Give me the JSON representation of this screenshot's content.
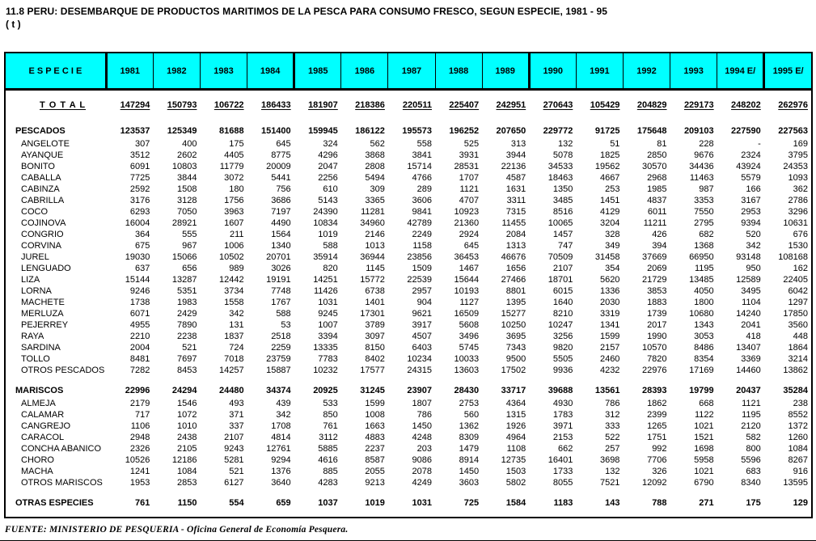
{
  "page": {
    "title": "11.8  PERU: DESEMBARQUE DE PRODUCTOS MARITIMOS DE LA PESCA PARA CONSUMO FRESCO, SEGUN ESPECIE, 1981 - 95",
    "unit": "( t )",
    "footer": "FUENTE: MINISTERIO DE PESQUERIA - Oficina General de Economía Pesquera."
  },
  "colors": {
    "header_bg": "#00ffff",
    "border": "#000000",
    "text": "#000000"
  },
  "table": {
    "columns": [
      "E S P E C I E",
      "1981",
      "1982",
      "1983",
      "1984",
      "1985",
      "1986",
      "1987",
      "1988",
      "1989",
      "1990",
      "1991",
      "1992",
      "1993",
      "1994 E/",
      "1995 E/"
    ],
    "rows": [
      {
        "label": "T O T A L",
        "style": "total",
        "values": [
          "147294",
          "150793",
          "106722",
          "186433",
          "181907",
          "218386",
          "220511",
          "225407",
          "242951",
          "270643",
          "105429",
          "204829",
          "229173",
          "248202",
          "262976"
        ]
      },
      {
        "label": "PESCADOS",
        "style": "section",
        "values": [
          "123537",
          "125349",
          "81688",
          "151400",
          "159945",
          "186122",
          "195573",
          "196252",
          "207650",
          "229772",
          "91725",
          "175648",
          "209103",
          "227590",
          "227563"
        ]
      },
      {
        "label": "ANGELOTE",
        "style": "item",
        "values": [
          "307",
          "400",
          "175",
          "645",
          "324",
          "562",
          "558",
          "525",
          "313",
          "132",
          "51",
          "81",
          "228",
          "-",
          "169"
        ]
      },
      {
        "label": "AYANQUE",
        "style": "item",
        "values": [
          "3512",
          "2602",
          "4405",
          "8775",
          "4296",
          "3868",
          "3841",
          "3931",
          "3944",
          "5078",
          "1825",
          "2850",
          "9676",
          "2324",
          "3795"
        ]
      },
      {
        "label": "BONITO",
        "style": "item",
        "values": [
          "6091",
          "10803",
          "11779",
          "20009",
          "2047",
          "2808",
          "15714",
          "28531",
          "22136",
          "34533",
          "19562",
          "30570",
          "34436",
          "43924",
          "24353"
        ]
      },
      {
        "label": "CABALLA",
        "style": "item",
        "values": [
          "7725",
          "3844",
          "3072",
          "5441",
          "2256",
          "5494",
          "4766",
          "1707",
          "4587",
          "18463",
          "4667",
          "2968",
          "11463",
          "5579",
          "1093"
        ]
      },
      {
        "label": "CABINZA",
        "style": "item",
        "values": [
          "2592",
          "1508",
          "180",
          "756",
          "610",
          "309",
          "289",
          "1121",
          "1631",
          "1350",
          "253",
          "1985",
          "987",
          "166",
          "362"
        ]
      },
      {
        "label": "CABRILLA",
        "style": "item",
        "values": [
          "3176",
          "3128",
          "1756",
          "3686",
          "5143",
          "3365",
          "3606",
          "4707",
          "3311",
          "3485",
          "1451",
          "4837",
          "3353",
          "3167",
          "2786"
        ]
      },
      {
        "label": "COCO",
        "style": "item",
        "values": [
          "6293",
          "7050",
          "3963",
          "7197",
          "24390",
          "11281",
          "9841",
          "10923",
          "7315",
          "8516",
          "4129",
          "6011",
          "7550",
          "2953",
          "3296"
        ]
      },
      {
        "label": "COJINOVA",
        "style": "item",
        "values": [
          "16004",
          "28921",
          "1607",
          "4490",
          "10834",
          "34960",
          "42789",
          "21360",
          "11455",
          "10065",
          "3204",
          "11211",
          "2795",
          "9394",
          "10631"
        ]
      },
      {
        "label": "CONGRIO",
        "style": "item",
        "values": [
          "364",
          "555",
          "211",
          "1564",
          "1019",
          "2146",
          "2249",
          "2924",
          "2084",
          "1457",
          "328",
          "426",
          "682",
          "520",
          "676"
        ]
      },
      {
        "label": "CORVINA",
        "style": "item",
        "values": [
          "675",
          "967",
          "1006",
          "1340",
          "588",
          "1013",
          "1158",
          "645",
          "1313",
          "747",
          "349",
          "394",
          "1368",
          "342",
          "1530"
        ]
      },
      {
        "label": "JUREL",
        "style": "item",
        "values": [
          "19030",
          "15066",
          "10502",
          "20701",
          "35914",
          "36944",
          "23856",
          "36453",
          "46676",
          "70509",
          "31458",
          "37669",
          "66950",
          "93148",
          "108168"
        ]
      },
      {
        "label": "LENGUADO",
        "style": "item",
        "values": [
          "637",
          "656",
          "989",
          "3026",
          "820",
          "1145",
          "1509",
          "1467",
          "1656",
          "2107",
          "354",
          "2069",
          "1195",
          "950",
          "162"
        ]
      },
      {
        "label": "LIZA",
        "style": "item",
        "values": [
          "15144",
          "13287",
          "12442",
          "19191",
          "14251",
          "15772",
          "22539",
          "15644",
          "27466",
          "18701",
          "5620",
          "21729",
          "13485",
          "12589",
          "22405"
        ]
      },
      {
        "label": "LORNA",
        "style": "item",
        "values": [
          "9246",
          "5351",
          "3734",
          "7748",
          "11426",
          "6738",
          "2957",
          "10193",
          "8801",
          "6015",
          "1336",
          "3853",
          "4050",
          "3495",
          "6042"
        ]
      },
      {
        "label": "MACHETE",
        "style": "item",
        "values": [
          "1738",
          "1983",
          "1558",
          "1767",
          "1031",
          "1401",
          "904",
          "1127",
          "1395",
          "1640",
          "2030",
          "1883",
          "1800",
          "1104",
          "1297"
        ]
      },
      {
        "label": "MERLUZA",
        "style": "item",
        "values": [
          "6071",
          "2429",
          "342",
          "588",
          "9245",
          "17301",
          "9621",
          "16509",
          "15277",
          "8210",
          "3319",
          "1739",
          "10680",
          "14240",
          "17850"
        ]
      },
      {
        "label": "PEJERREY",
        "style": "item",
        "values": [
          "4955",
          "7890",
          "131",
          "53",
          "1007",
          "3789",
          "3917",
          "5608",
          "10250",
          "10247",
          "1341",
          "2017",
          "1343",
          "2041",
          "3560"
        ]
      },
      {
        "label": "RAYA",
        "style": "item",
        "values": [
          "2210",
          "2238",
          "1837",
          "2518",
          "3394",
          "3097",
          "4507",
          "3496",
          "3695",
          "3256",
          "1599",
          "1990",
          "3053",
          "418",
          "448"
        ]
      },
      {
        "label": "SARDINA",
        "style": "item",
        "values": [
          "2004",
          "521",
          "724",
          "2259",
          "13335",
          "8150",
          "6403",
          "5745",
          "7343",
          "9820",
          "2157",
          "10570",
          "8486",
          "13407",
          "1864"
        ]
      },
      {
        "label": "TOLLO",
        "style": "item",
        "values": [
          "8481",
          "7697",
          "7018",
          "23759",
          "7783",
          "8402",
          "10234",
          "10033",
          "9500",
          "5505",
          "2460",
          "7820",
          "8354",
          "3369",
          "3214"
        ]
      },
      {
        "label": "OTROS PESCADOS",
        "style": "item",
        "values": [
          "7282",
          "8453",
          "14257",
          "15887",
          "10232",
          "17577",
          "24315",
          "13603",
          "17502",
          "9936",
          "4232",
          "22976",
          "17169",
          "14460",
          "13862"
        ]
      },
      {
        "label": "MARISCOS",
        "style": "section",
        "values": [
          "22996",
          "24294",
          "24480",
          "34374",
          "20925",
          "31245",
          "23907",
          "28430",
          "33717",
          "39688",
          "13561",
          "28393",
          "19799",
          "20437",
          "35284"
        ]
      },
      {
        "label": "ALMEJA",
        "style": "item",
        "values": [
          "2179",
          "1546",
          "493",
          "439",
          "533",
          "1599",
          "1807",
          "2753",
          "4364",
          "4930",
          "786",
          "1862",
          "668",
          "1121",
          "238"
        ]
      },
      {
        "label": "CALAMAR",
        "style": "item",
        "values": [
          "717",
          "1072",
          "371",
          "342",
          "850",
          "1008",
          "786",
          "560",
          "1315",
          "1783",
          "312",
          "2399",
          "1122",
          "1195",
          "8552"
        ]
      },
      {
        "label": "CANGREJO",
        "style": "item",
        "values": [
          "1106",
          "1010",
          "337",
          "1708",
          "761",
          "1663",
          "1450",
          "1362",
          "1926",
          "3971",
          "333",
          "1265",
          "1021",
          "2120",
          "1372"
        ]
      },
      {
        "label": "CARACOL",
        "style": "item",
        "values": [
          "2948",
          "2438",
          "2107",
          "4814",
          "3112",
          "4883",
          "4248",
          "8309",
          "4964",
          "2153",
          "522",
          "1751",
          "1521",
          "582",
          "1260"
        ]
      },
      {
        "label": "CONCHA ABANICO",
        "style": "item",
        "values": [
          "2326",
          "2105",
          "9243",
          "12761",
          "5885",
          "2237",
          "203",
          "1479",
          "1108",
          "662",
          "257",
          "992",
          "1698",
          "800",
          "1084"
        ]
      },
      {
        "label": "CHORO",
        "style": "item",
        "values": [
          "10526",
          "12186",
          "5281",
          "9294",
          "4616",
          "8587",
          "9086",
          "8914",
          "12735",
          "16401",
          "3698",
          "7706",
          "5958",
          "5596",
          "8267"
        ]
      },
      {
        "label": "MACHA",
        "style": "item",
        "values": [
          "1241",
          "1084",
          "521",
          "1376",
          "885",
          "2055",
          "2078",
          "1450",
          "1503",
          "1733",
          "132",
          "326",
          "1021",
          "683",
          "916"
        ]
      },
      {
        "label": "OTROS MARISCOS",
        "style": "item",
        "values": [
          "1953",
          "2853",
          "6127",
          "3640",
          "4283",
          "9213",
          "4249",
          "3603",
          "5802",
          "8055",
          "7521",
          "12092",
          "6790",
          "8340",
          "13595"
        ]
      },
      {
        "label": "OTRAS ESPECIES",
        "style": "section",
        "values": [
          "761",
          "1150",
          "554",
          "659",
          "1037",
          "1019",
          "1031",
          "725",
          "1584",
          "1183",
          "143",
          "788",
          "271",
          "175",
          "129"
        ]
      }
    ]
  }
}
